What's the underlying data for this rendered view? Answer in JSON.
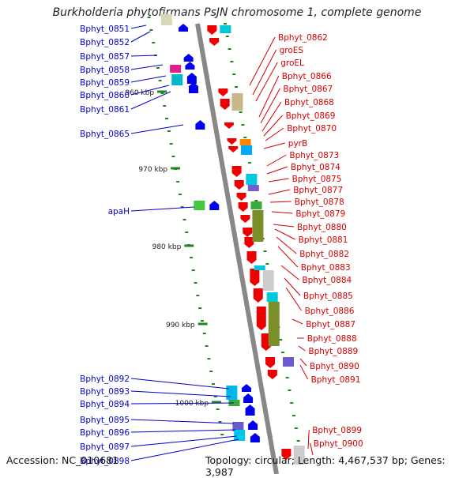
{
  "title": "Burkholderia phytofirmans PsJN chromosome 1, complete genome",
  "footer": {
    "accession": "Accession: NC_010681",
    "topology": "Topology: circular; Length: 4,467,537 bp; Genes: 3,987"
  },
  "colors": {
    "left_label": "#0000cc",
    "right_label": "#d40000",
    "left_strand_gene": "#0000ee",
    "right_strand_gene": "#ee0000",
    "backbone": "#888888",
    "tick": "#1a8a1a"
  },
  "ticks": [
    {
      "label": "960 kbp"
    },
    {
      "label": "970 kbp"
    },
    {
      "label": "980 kbp"
    },
    {
      "label": "990 kbp"
    },
    {
      "label": "1000 kbp"
    }
  ],
  "left_labels": [
    "Bphyt_0851",
    "Bphyt_0852",
    "Bphyt_0857",
    "Bphyt_0858",
    "Bphyt_0859",
    "Bphyt_0860",
    "Bphyt_0861",
    "Bphyt_0865",
    "apaH",
    "Bphyt_0892",
    "Bphyt_0893",
    "Bphyt_0894",
    "Bphyt_0895",
    "Bphyt_0896",
    "Bphyt_0897",
    "Bphyt_0898"
  ],
  "right_labels": [
    "Bphyt_0862",
    "groES",
    "groEL",
    "Bphyt_0866",
    "Bphyt_0867",
    "Bphyt_0868",
    "Bphyt_0869",
    "Bphyt_0870",
    "pyrB",
    "Bphyt_0873",
    "Bphyt_0874",
    "Bphyt_0875",
    "Bphyt_0877",
    "Bphyt_0878",
    "Bphyt_0879",
    "Bphyt_0880",
    "Bphyt_0881",
    "Bphyt_0882",
    "Bphyt_0883",
    "Bphyt_0884",
    "Bphyt_0885",
    "Bphyt_0886",
    "Bphyt_0887",
    "Bphyt_0888",
    "Bphyt_0889",
    "Bphyt_0890",
    "Bphyt_0891",
    "Bphyt_0899",
    "Bphyt_0900"
  ]
}
